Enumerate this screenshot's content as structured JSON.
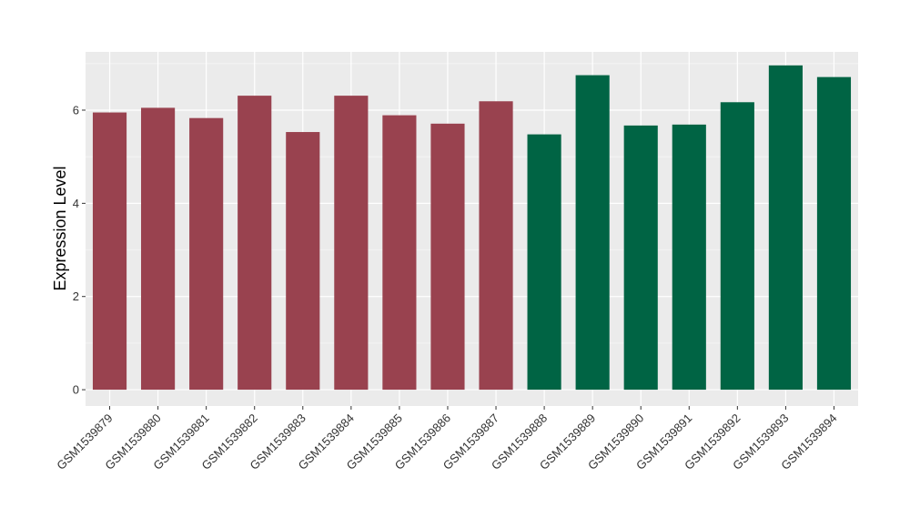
{
  "chart_data": {
    "type": "bar",
    "title": "",
    "xlabel": "",
    "ylabel": "Expression Level",
    "ylim": [
      -0.35,
      7.25
    ],
    "yticks": [
      0,
      2,
      4,
      6
    ],
    "grid": true,
    "categories": [
      "GSM1539879",
      "GSM1539880",
      "GSM1539881",
      "GSM1539882",
      "GSM1539883",
      "GSM1539884",
      "GSM1539885",
      "GSM1539886",
      "GSM1539887",
      "GSM1539888",
      "GSM1539889",
      "GSM1539890",
      "GSM1539891",
      "GSM1539892",
      "GSM1539893",
      "GSM1539894"
    ],
    "values": [
      5.95,
      6.05,
      5.83,
      6.31,
      5.53,
      6.31,
      5.89,
      5.71,
      6.19,
      5.48,
      6.75,
      5.67,
      5.69,
      6.17,
      6.96,
      6.71
    ],
    "groups": [
      "group1",
      "group1",
      "group1",
      "group1",
      "group1",
      "group1",
      "group1",
      "group1",
      "group1",
      "group2",
      "group2",
      "group2",
      "group2",
      "group2",
      "group2",
      "group2"
    ],
    "colors": {
      "group1": "#99424f",
      "group2": "#006444",
      "panel": "#ebebeb",
      "grid_major": "#ffffff",
      "grid_minor": "#f5f5f5"
    }
  }
}
